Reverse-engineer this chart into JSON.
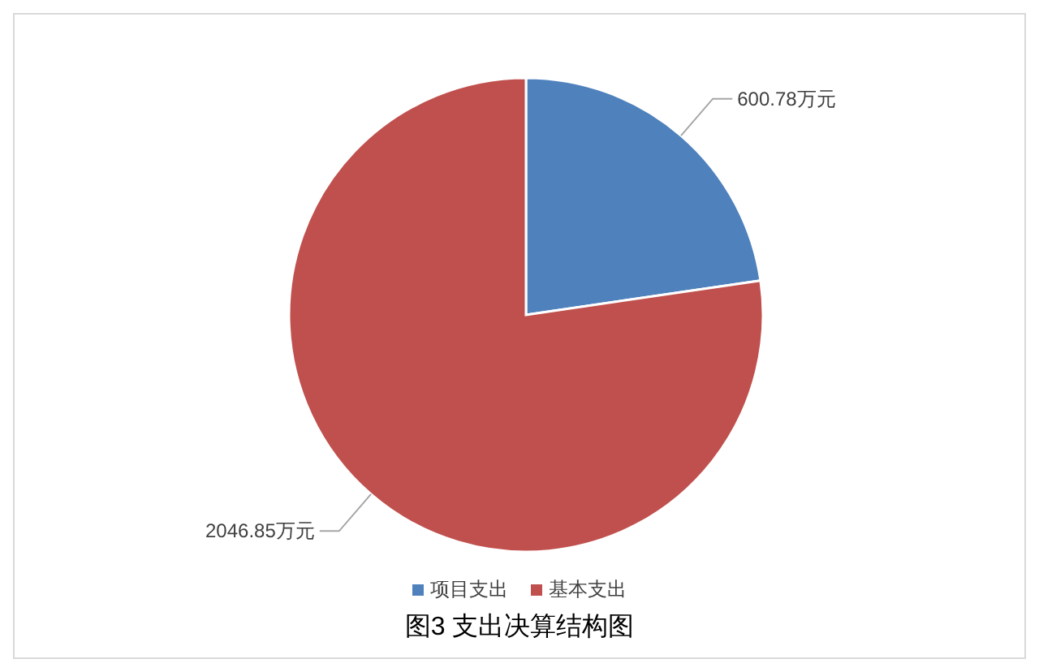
{
  "chart_data": {
    "type": "pie",
    "title": "图3 支出决算结构图",
    "categories": [
      "项目支出",
      "基本支出"
    ],
    "values": [
      600.78,
      2046.85
    ],
    "colors": [
      "#4f81bd",
      "#c0504d"
    ],
    "value_labels": [
      "600.78万元",
      "2046.85万元"
    ],
    "legend": "bottom"
  }
}
